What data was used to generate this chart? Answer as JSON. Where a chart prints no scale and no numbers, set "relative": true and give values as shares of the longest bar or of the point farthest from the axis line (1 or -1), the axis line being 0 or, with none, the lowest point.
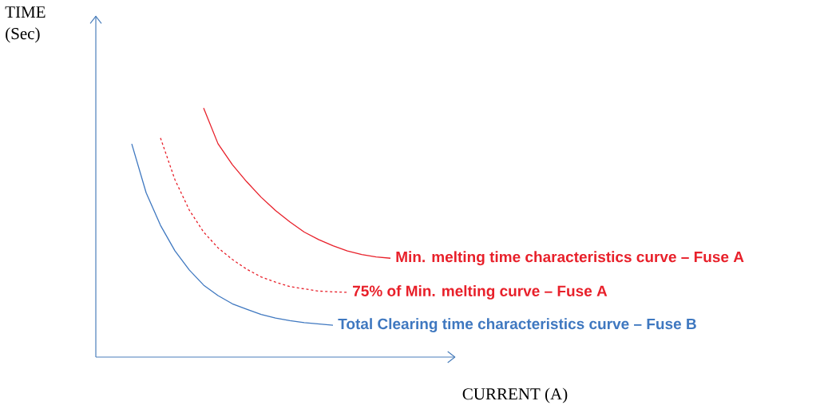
{
  "chart_data": {
    "type": "line",
    "relative": true,
    "annotations": [
      "TIME (Sec)",
      "CURRENT (A)"
    ],
    "categories": [
      null,
      null,
      null,
      null,
      null,
      null,
      null,
      null,
      null,
      null,
      null,
      null,
      null,
      null,
      null,
      null,
      null,
      null,
      null
    ],
    "series": [
      {
        "name": "Min. melting time characteristics curve – Fuse A",
        "color": "#e8202a",
        "line_style": "solid",
        "values": [
          null,
          null,
          null,
          null,
          null,
          1.0,
          0.857,
          0.773,
          0.704,
          0.642,
          0.589,
          0.543,
          0.502,
          0.472,
          0.447,
          0.426,
          0.412,
          0.402,
          0.397
        ]
      },
      {
        "name": "75% of Min. melting curve – Fuse A",
        "color": "#e8202a",
        "line_style": "dashed",
        "values": [
          null,
          null,
          0.88,
          0.713,
          0.591,
          0.502,
          0.439,
          0.392,
          0.353,
          0.322,
          0.301,
          0.283,
          0.274,
          0.265,
          0.262,
          0.26,
          null,
          null,
          null
        ]
      },
      {
        "name": "Total Clearing time characteristics curve – Fuse B",
        "color": "#3f78c0",
        "line_style": "solid",
        "values": [
          0.856,
          0.66,
          0.529,
          0.427,
          0.35,
          0.289,
          0.247,
          0.214,
          0.192,
          0.171,
          0.157,
          0.146,
          0.138,
          0.133,
          0.128,
          null,
          null,
          null,
          null
        ]
      }
    ]
  }
}
